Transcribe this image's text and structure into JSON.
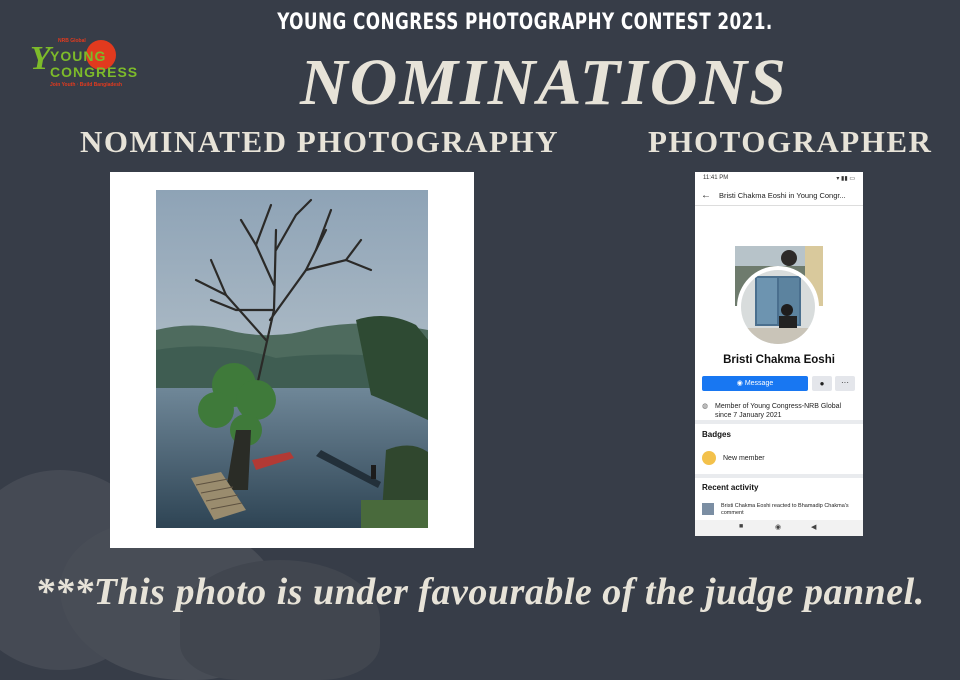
{
  "header": {
    "contest_title": "YOUNG CONGRESS PHOTOGRAPHY CONTEST 2021.",
    "main_title": "NOMINATIONS"
  },
  "logo": {
    "line1": "YOUNG",
    "line2": "CONGRESS",
    "top_text": "NRB Global",
    "bottom_text": "Join Youth · Build Bangladesh",
    "colors": {
      "green": "#7dbb2a",
      "red": "#e23a1e"
    }
  },
  "sections": {
    "left_heading": "NOMINATED PHOTOGRAPHY",
    "right_heading": "PHOTOGRAPHER"
  },
  "profile": {
    "status_time": "11:41 PM",
    "page_title": "Bristi Chakma Eoshi in Young Congr...",
    "name": "Bristi Chakma Eoshi",
    "message_button": "Message",
    "member_line_1": "Member of Young Congress-NRB Global",
    "member_line_2": "since 7 January 2021",
    "badges_heading": "Badges",
    "badge_label": "New member",
    "recent_heading": "Recent activity",
    "activity_text": "Bristi Chakma Eoshi reacted to Bhamadip Chakma's comment"
  },
  "footer": {
    "note": "***This photo is under favourable of the judge pannel."
  },
  "colors": {
    "background": "#373d48",
    "heading_text": "#e7e3d8",
    "facebook_blue": "#1877f2"
  }
}
